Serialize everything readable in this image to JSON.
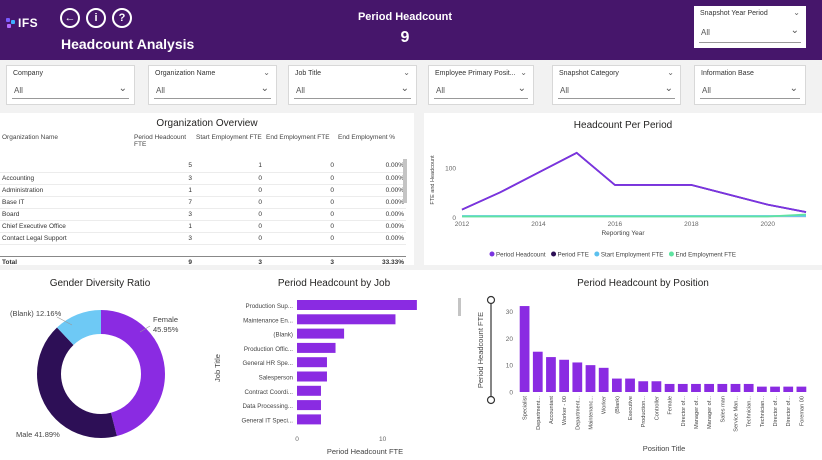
{
  "header": {
    "logo_text": "IFS",
    "title": "Headcount Analysis",
    "kpi": {
      "label": "Period Headcount",
      "value": "9"
    },
    "snapshot_year_slicer": {
      "label": "Snapshot Year Period",
      "value": "All"
    },
    "buttons": [
      {
        "name": "back-button",
        "glyph": "←"
      },
      {
        "name": "info-button",
        "glyph": "i"
      },
      {
        "name": "help-button",
        "glyph": "?"
      }
    ]
  },
  "filters": [
    {
      "label": "Company",
      "value": "All"
    },
    {
      "label": "Organization Name",
      "value": "All"
    },
    {
      "label": "Job Title",
      "value": "All"
    },
    {
      "label": "Employee Primary Posit...",
      "value": "All"
    },
    {
      "label": "Snapshot Category",
      "value": "All"
    },
    {
      "label": "Information Base",
      "value": "All"
    }
  ],
  "org_overview": {
    "title": "Organization Overview",
    "columns": [
      "Organization Name",
      "Period Headcount FTE",
      "Start Employment FTE",
      "End Employment FTE",
      "End Employment %"
    ],
    "rows": [
      [
        "",
        "5",
        "1",
        "0",
        "0.00%"
      ],
      [
        "Accounting",
        "3",
        "0",
        "0",
        "0.00%"
      ],
      [
        "Administration",
        "1",
        "0",
        "0",
        "0.00%"
      ],
      [
        "Base IT",
        "7",
        "0",
        "0",
        "0.00%"
      ],
      [
        "Board",
        "3",
        "0",
        "0",
        "0.00%"
      ],
      [
        "Chief Executive Office",
        "1",
        "0",
        "0",
        "0.00%"
      ],
      [
        "Contact Legal Support",
        "3",
        "0",
        "0",
        "0.00%"
      ]
    ],
    "total": [
      "Total",
      "9",
      "3",
      "3",
      "33.33%"
    ]
  },
  "headcount_per_period": {
    "title": "Headcount Per Period",
    "chart_data": {
      "type": "line",
      "x": [
        2012,
        2013,
        2014,
        2015,
        2016,
        2017,
        2018,
        2019,
        2020,
        2021
      ],
      "series": [
        {
          "name": "Period Headcount",
          "color": "#7a33e0",
          "values": [
            15,
            50,
            90,
            130,
            65,
            65,
            65,
            45,
            25,
            10
          ]
        },
        {
          "name": "Period FTE",
          "color": "#2d0f56",
          "values": [
            15,
            50,
            90,
            130,
            65,
            65,
            65,
            45,
            25,
            10
          ]
        },
        {
          "name": "Start Employment FTE",
          "color": "#5bc0ee",
          "values": [
            2,
            2,
            2,
            2,
            2,
            2,
            2,
            2,
            2,
            2
          ]
        },
        {
          "name": "End Employment FTE",
          "color": "#5fe3a1",
          "values": [
            1,
            1,
            1,
            1,
            1,
            1,
            1,
            1,
            1,
            5
          ]
        }
      ],
      "xticks": [
        "2012",
        "2014",
        "2016",
        "2018",
        "2020"
      ],
      "yticks": [
        "0",
        "100"
      ],
      "xlabel": "Reporting Year",
      "ylabel": "FTE and Headcount",
      "ylim": [
        0,
        150
      ]
    }
  },
  "gender_diversity": {
    "title": "Gender Diversity Ratio",
    "chart_data": {
      "type": "pie",
      "categories": [
        "Female",
        "Male",
        "(Blank)"
      ],
      "values": [
        45.95,
        41.89,
        12.16
      ],
      "colors": [
        "#8a2be2",
        "#2d0f56",
        "#6ec9f5"
      ],
      "labels": [
        "Female 45.95%",
        "Male 41.89%",
        "(Blank) 12.16%"
      ]
    }
  },
  "headcount_by_job": {
    "title": "Period Headcount by Job",
    "chart_data": {
      "type": "bar",
      "categories": [
        "Production Sup...",
        "Maintenance En...",
        "(Blank)",
        "Production Offic...",
        "General HR Spe...",
        "Salesperson",
        "Contract Coordi...",
        "Data Processing...",
        "General IT Speci..."
      ],
      "values": [
        14,
        11.5,
        5.5,
        4.5,
        3.5,
        3.5,
        2.8,
        2.8,
        2.8
      ],
      "color": "#8a2be2",
      "xticks": [
        "0",
        "10"
      ],
      "xlabel": "Period Headcount FTE",
      "ylabel": "Job Title",
      "xlim": [
        0,
        16
      ]
    }
  },
  "headcount_by_position": {
    "title": "Period Headcount by Position",
    "chart_data": {
      "type": "bar",
      "categories": [
        "Specialist",
        "Department...",
        "Accountant",
        "Worker - 00",
        "Department...",
        "Maintenanc...",
        "Worker",
        "(Blank)",
        "Executive",
        "Production...",
        "Controller",
        "Female",
        "Director of...",
        "Manager of...",
        "Manager of...",
        "Sales man",
        "Service Man...",
        "Technician...",
        "Technician...",
        "Director of...",
        "Director of...",
        "Foreman 00"
      ],
      "values": [
        32,
        15,
        13,
        12,
        11,
        10,
        9,
        5,
        5,
        4,
        4,
        3,
        3,
        3,
        3,
        3,
        3,
        3,
        2,
        2,
        2,
        2
      ],
      "color": "#8a2be2",
      "yticks": [
        "0",
        "10",
        "20",
        "30"
      ],
      "xlabel": "Position Title",
      "ylabel": "Period Headcount FTE",
      "ylim": [
        0,
        35
      ]
    }
  }
}
